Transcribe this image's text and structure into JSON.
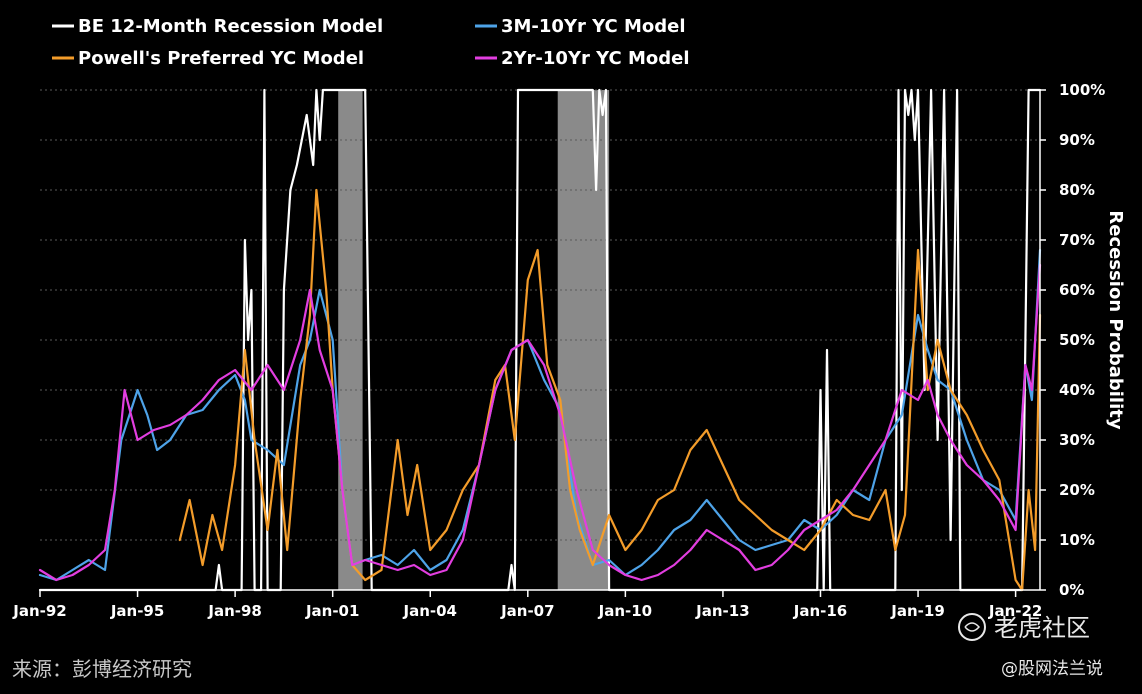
{
  "chart_data": {
    "type": "line",
    "ylabel": "Recession Probability",
    "ylim": [
      0,
      100
    ],
    "y_ticks": [
      "0%",
      "10%",
      "20%",
      "30%",
      "40%",
      "50%",
      "60%",
      "70%",
      "80%",
      "90%",
      "100%"
    ],
    "y_tick_values": [
      0,
      10,
      20,
      30,
      40,
      50,
      60,
      70,
      80,
      90,
      100
    ],
    "y_axis_side": "right",
    "x_ticks": [
      "Jan-92",
      "Jan-95",
      "Jan-98",
      "Jan-01",
      "Jan-04",
      "Jan-07",
      "Jan-10",
      "Jan-13",
      "Jan-16",
      "Jan-19",
      "Jan-22"
    ],
    "x_tick_values": [
      1992,
      1995,
      1998,
      2001,
      2004,
      2007,
      2010,
      2013,
      2016,
      2019,
      2022
    ],
    "xlim": [
      1992.0,
      2022.75
    ],
    "grid": "horizontal dashed",
    "legend_position": "top-left",
    "recession_shading": [
      [
        2001.17,
        2001.92
      ],
      [
        2007.92,
        2009.5
      ]
    ],
    "series": [
      {
        "name": "BE 12-Month Recession Model",
        "color": "#ffffff",
        "x": [
          1992,
          1997.4,
          1997.5,
          1997.6,
          1997.7,
          1998.2,
          1998.3,
          1998.4,
          1998.5,
          1998.6,
          1998.8,
          1998.9,
          1999.0,
          1999.4,
          1999.5,
          1999.7,
          1999.9,
          2000.2,
          2000.4,
          2000.5,
          2000.6,
          2000.7,
          2000.8,
          2000.9,
          2001.0,
          2001.1,
          2001.2,
          2001.5,
          2001.9,
          2002.0,
          2002.2,
          2006.4,
          2006.5,
          2006.6,
          2006.7,
          2006.8,
          2006.9,
          2007.0,
          2007.5,
          2008.0,
          2008.5,
          2009.0,
          2009.1,
          2009.2,
          2009.3,
          2009.4,
          2009.5,
          2009.6,
          2009.7,
          2015.9,
          2016.0,
          2016.1,
          2016.2,
          2016.3,
          2018.3,
          2018.4,
          2018.5,
          2018.6,
          2018.7,
          2018.8,
          2018.9,
          2019.0,
          2019.2,
          2019.4,
          2019.6,
          2019.8,
          2020.0,
          2020.2,
          2020.3,
          2020.5,
          2020.7,
          2022.2,
          2022.3,
          2022.4,
          2022.6,
          2022.75
        ],
        "values": [
          0,
          0,
          5,
          0,
          0,
          0,
          70,
          50,
          60,
          0,
          0,
          100,
          0,
          0,
          60,
          80,
          85,
          95,
          85,
          100,
          90,
          100,
          100,
          100,
          100,
          100,
          100,
          100,
          100,
          100,
          0,
          0,
          5,
          0,
          100,
          100,
          100,
          100,
          100,
          100,
          100,
          100,
          80,
          100,
          95,
          100,
          0,
          0,
          0,
          0,
          40,
          0,
          48,
          0,
          0,
          100,
          20,
          100,
          95,
          100,
          90,
          100,
          40,
          100,
          30,
          100,
          10,
          100,
          0,
          0,
          0,
          0,
          50,
          100,
          100,
          100
        ]
      },
      {
        "name": "3M-10Yr YC Model",
        "color": "#4ea3e8",
        "x": [
          1992,
          1992.5,
          1993,
          1993.5,
          1994,
          1994.5,
          1995,
          1995.3,
          1995.6,
          1996,
          1996.5,
          1997,
          1997.5,
          1998,
          1998.3,
          1998.5,
          1999,
          1999.5,
          2000,
          2000.3,
          2000.6,
          2001,
          2001.3,
          2001.6,
          2002,
          2002.5,
          2003,
          2003.5,
          2004,
          2004.5,
          2005,
          2005.5,
          2006,
          2006.5,
          2007,
          2007.5,
          2008,
          2008.5,
          2009,
          2009.5,
          2010,
          2010.5,
          2011,
          2011.5,
          2012,
          2012.5,
          2013,
          2013.5,
          2014,
          2014.5,
          2015,
          2015.5,
          2016,
          2016.5,
          2017,
          2017.5,
          2018,
          2018.5,
          2019,
          2019.3,
          2019.6,
          2020,
          2020.5,
          2021,
          2021.5,
          2022,
          2022.3,
          2022.5,
          2022.75
        ],
        "values": [
          3,
          2,
          4,
          6,
          4,
          30,
          40,
          35,
          28,
          30,
          35,
          36,
          40,
          43,
          38,
          30,
          28,
          25,
          45,
          50,
          60,
          50,
          20,
          5,
          6,
          7,
          5,
          8,
          4,
          6,
          12,
          25,
          40,
          48,
          50,
          42,
          36,
          15,
          5,
          6,
          3,
          5,
          8,
          12,
          14,
          18,
          14,
          10,
          8,
          9,
          10,
          14,
          12,
          15,
          20,
          18,
          30,
          35,
          55,
          48,
          42,
          40,
          30,
          22,
          20,
          14,
          45,
          38,
          68
        ]
      },
      {
        "name": "Powell's Preferred YC Model",
        "color": "#f39c2a",
        "x": [
          1996.3,
          1996.6,
          1997,
          1997.3,
          1997.6,
          1998,
          1998.3,
          1998.6,
          1999,
          1999.3,
          1999.6,
          2000,
          2000.3,
          2000.5,
          2000.8,
          2001,
          2001.3,
          2001.6,
          2002,
          2002.5,
          2003,
          2003.3,
          2003.6,
          2004,
          2004.5,
          2005,
          2005.5,
          2006,
          2006.3,
          2006.6,
          2007,
          2007.3,
          2007.6,
          2008,
          2008.3,
          2008.6,
          2009,
          2009.5,
          2010,
          2010.5,
          2011,
          2011.5,
          2012,
          2012.5,
          2013,
          2013.5,
          2014,
          2014.5,
          2015,
          2015.5,
          2016,
          2016.5,
          2017,
          2017.5,
          2018,
          2018.3,
          2018.6,
          2019,
          2019.3,
          2019.6,
          2020,
          2020.5,
          2021,
          2021.5,
          2022,
          2022.2,
          2022.4,
          2022.6,
          2022.75
        ],
        "values": [
          10,
          18,
          5,
          15,
          8,
          25,
          48,
          30,
          12,
          28,
          8,
          38,
          55,
          80,
          60,
          40,
          20,
          5,
          2,
          4,
          30,
          15,
          25,
          8,
          12,
          20,
          25,
          42,
          45,
          30,
          62,
          68,
          45,
          38,
          20,
          12,
          5,
          15,
          8,
          12,
          18,
          20,
          28,
          32,
          25,
          18,
          15,
          12,
          10,
          8,
          12,
          18,
          15,
          14,
          20,
          8,
          15,
          68,
          40,
          50,
          40,
          35,
          28,
          22,
          2,
          0,
          20,
          8,
          55
        ]
      },
      {
        "name": "2Yr-10Yr YC Model",
        "color": "#e23ee0",
        "x": [
          1992,
          1992.5,
          1993,
          1993.5,
          1994,
          1994.3,
          1994.6,
          1995,
          1995.5,
          1996,
          1996.5,
          1997,
          1997.5,
          1998,
          1998.5,
          1999,
          1999.5,
          2000,
          2000.3,
          2000.6,
          2001,
          2001.3,
          2001.6,
          2002,
          2002.5,
          2003,
          2003.5,
          2004,
          2004.5,
          2005,
          2005.5,
          2006,
          2006.5,
          2007,
          2007.5,
          2008,
          2008.5,
          2009,
          2009.5,
          2010,
          2010.5,
          2011,
          2011.5,
          2012,
          2012.5,
          2013,
          2013.5,
          2014,
          2014.5,
          2015,
          2015.5,
          2016,
          2016.5,
          2017,
          2017.5,
          2018,
          2018.5,
          2019,
          2019.3,
          2019.6,
          2020,
          2020.5,
          2021,
          2021.5,
          2022,
          2022.3,
          2022.5,
          2022.75
        ],
        "values": [
          4,
          2,
          3,
          5,
          8,
          20,
          40,
          30,
          32,
          33,
          35,
          38,
          42,
          44,
          40,
          45,
          40,
          50,
          60,
          48,
          40,
          20,
          5,
          6,
          5,
          4,
          5,
          3,
          4,
          10,
          25,
          40,
          48,
          50,
          45,
          35,
          20,
          8,
          5,
          3,
          2,
          3,
          5,
          8,
          12,
          10,
          8,
          4,
          5,
          8,
          12,
          14,
          16,
          20,
          25,
          30,
          40,
          38,
          42,
          35,
          30,
          25,
          22,
          18,
          12,
          45,
          40,
          65
        ]
      }
    ]
  },
  "footer": {
    "source": "来源：彭博经济研究",
    "brand": "老虎社区",
    "credit": "@股网法兰说"
  }
}
